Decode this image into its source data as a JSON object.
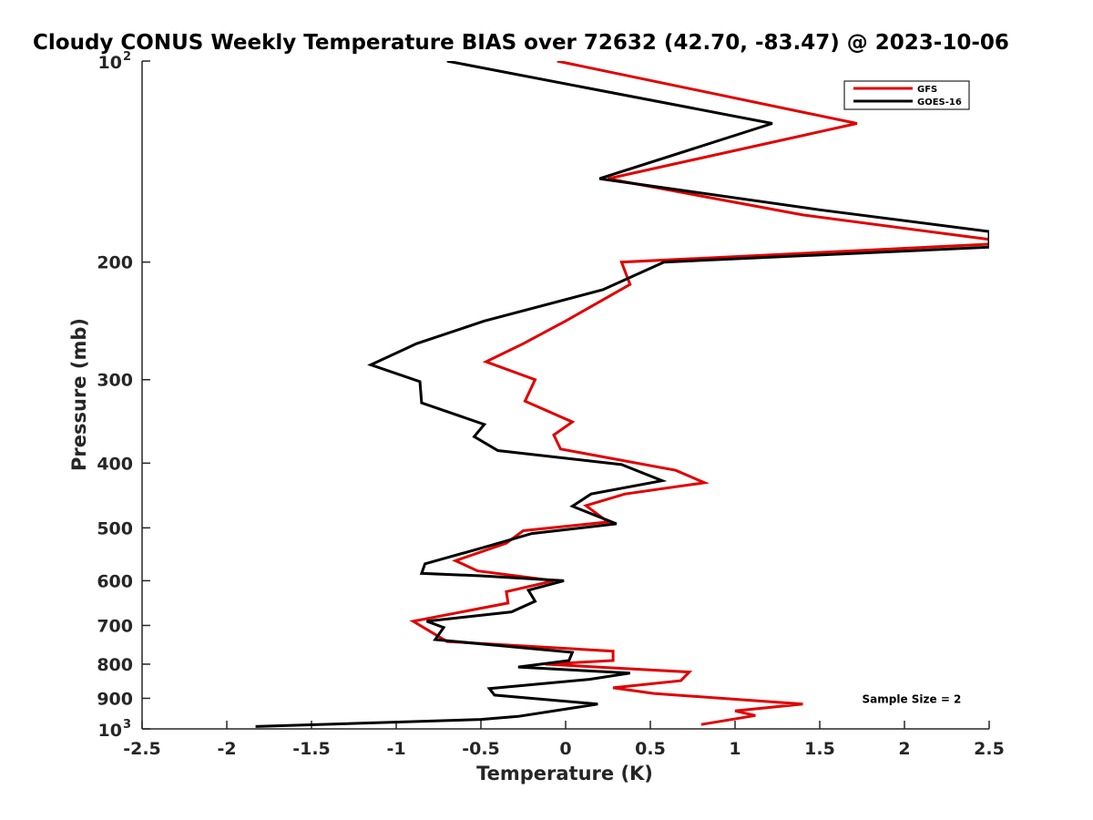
{
  "chart_data": {
    "type": "line",
    "title": "Cloudy CONUS Weekly Temperature BIAS over 72632 (42.70, -83.47) @ 2023-10-06",
    "xlabel": "Temperature (K)",
    "ylabel": "Pressure (mb)",
    "xlim": [
      -2.5,
      2.5
    ],
    "ylim": [
      100,
      1000
    ],
    "y_scale": "log",
    "y_reversed": true,
    "grid": false,
    "legend_position": "top-right",
    "x_ticks": [
      {
        "value": -2.5,
        "label": "-2.5"
      },
      {
        "value": -2,
        "label": "-2"
      },
      {
        "value": -1.5,
        "label": "-1.5"
      },
      {
        "value": -1,
        "label": "-1"
      },
      {
        "value": -0.5,
        "label": "-0.5"
      },
      {
        "value": 0,
        "label": "0"
      },
      {
        "value": 0.5,
        "label": "0.5"
      },
      {
        "value": 1,
        "label": "1"
      },
      {
        "value": 1.5,
        "label": "1.5"
      },
      {
        "value": 2,
        "label": "2"
      },
      {
        "value": 2.5,
        "label": "2.5"
      }
    ],
    "y_ticks": [
      {
        "value": 200,
        "label": "200"
      },
      {
        "value": 300,
        "label": "300"
      },
      {
        "value": 400,
        "label": "400"
      },
      {
        "value": 500,
        "label": "500"
      },
      {
        "value": 600,
        "label": "600"
      },
      {
        "value": 700,
        "label": "700"
      },
      {
        "value": 800,
        "label": "800"
      },
      {
        "value": 900,
        "label": "900"
      }
    ],
    "y_ticks_power": [
      {
        "value": 100,
        "base": "10",
        "exp": "2"
      },
      {
        "value": 1000,
        "base": "10",
        "exp": "3"
      }
    ],
    "series": [
      {
        "name": "GFS",
        "color": "#e00000",
        "points": [
          {
            "x": -0.05,
            "y": 100
          },
          {
            "x": 1.72,
            "y": 124
          },
          {
            "x": 0.25,
            "y": 150
          },
          {
            "x": 1.4,
            "y": 170
          },
          {
            "x": 2.5,
            "y": 185
          },
          {
            "x": 2.5,
            "y": 188
          },
          {
            "x": 0.33,
            "y": 200
          },
          {
            "x": 0.38,
            "y": 216
          },
          {
            "x": 0.0,
            "y": 245
          },
          {
            "x": -0.25,
            "y": 265
          },
          {
            "x": -0.47,
            "y": 282
          },
          {
            "x": -0.18,
            "y": 300
          },
          {
            "x": -0.24,
            "y": 323
          },
          {
            "x": 0.04,
            "y": 347
          },
          {
            "x": -0.07,
            "y": 363
          },
          {
            "x": -0.03,
            "y": 381
          },
          {
            "x": 0.65,
            "y": 410
          },
          {
            "x": 0.82,
            "y": 428
          },
          {
            "x": 0.35,
            "y": 445
          },
          {
            "x": 0.12,
            "y": 463
          },
          {
            "x": 0.25,
            "y": 490
          },
          {
            "x": -0.25,
            "y": 505
          },
          {
            "x": -0.35,
            "y": 527
          },
          {
            "x": -0.65,
            "y": 560
          },
          {
            "x": -0.52,
            "y": 580
          },
          {
            "x": -0.07,
            "y": 600
          },
          {
            "x": -0.35,
            "y": 623
          },
          {
            "x": -0.34,
            "y": 648
          },
          {
            "x": -0.9,
            "y": 690
          },
          {
            "x": -0.7,
            "y": 740
          },
          {
            "x": 0.28,
            "y": 765
          },
          {
            "x": 0.28,
            "y": 790
          },
          {
            "x": -0.12,
            "y": 800
          },
          {
            "x": 0.73,
            "y": 822
          },
          {
            "x": 0.68,
            "y": 847
          },
          {
            "x": 0.28,
            "y": 868
          },
          {
            "x": 0.52,
            "y": 885
          },
          {
            "x": 1.4,
            "y": 918
          },
          {
            "x": 1.0,
            "y": 940
          },
          {
            "x": 1.12,
            "y": 955
          },
          {
            "x": 0.8,
            "y": 985
          }
        ]
      },
      {
        "name": "GOES-16",
        "color": "#000000",
        "points": [
          {
            "x": -0.7,
            "y": 100
          },
          {
            "x": 1.22,
            "y": 124
          },
          {
            "x": 0.2,
            "y": 150
          },
          {
            "x": 1.5,
            "y": 167
          },
          {
            "x": 2.5,
            "y": 180
          },
          {
            "x": 2.5,
            "y": 190
          },
          {
            "x": 0.58,
            "y": 200
          },
          {
            "x": 0.22,
            "y": 220
          },
          {
            "x": -0.48,
            "y": 245
          },
          {
            "x": -0.88,
            "y": 265
          },
          {
            "x": -1.15,
            "y": 285
          },
          {
            "x": -0.86,
            "y": 302
          },
          {
            "x": -0.85,
            "y": 325
          },
          {
            "x": -0.48,
            "y": 350
          },
          {
            "x": -0.54,
            "y": 365
          },
          {
            "x": -0.4,
            "y": 383
          },
          {
            "x": 0.33,
            "y": 402
          },
          {
            "x": 0.57,
            "y": 425
          },
          {
            "x": 0.15,
            "y": 445
          },
          {
            "x": 0.04,
            "y": 464
          },
          {
            "x": 0.3,
            "y": 493
          },
          {
            "x": -0.2,
            "y": 510
          },
          {
            "x": -0.45,
            "y": 532
          },
          {
            "x": -0.83,
            "y": 566
          },
          {
            "x": -0.85,
            "y": 585
          },
          {
            "x": -0.5,
            "y": 590
          },
          {
            "x": -0.01,
            "y": 600
          },
          {
            "x": -0.22,
            "y": 620
          },
          {
            "x": -0.18,
            "y": 644
          },
          {
            "x": -0.32,
            "y": 668
          },
          {
            "x": -0.82,
            "y": 690
          },
          {
            "x": -0.72,
            "y": 705
          },
          {
            "x": -0.77,
            "y": 735
          },
          {
            "x": 0.04,
            "y": 768
          },
          {
            "x": 0.02,
            "y": 790
          },
          {
            "x": -0.28,
            "y": 808
          },
          {
            "x": 0.38,
            "y": 825
          },
          {
            "x": 0.14,
            "y": 843
          },
          {
            "x": -0.45,
            "y": 870
          },
          {
            "x": -0.42,
            "y": 890
          },
          {
            "x": 0.19,
            "y": 918
          },
          {
            "x": -0.28,
            "y": 958
          },
          {
            "x": -0.5,
            "y": 968
          },
          {
            "x": -1.83,
            "y": 992
          }
        ]
      }
    ],
    "annotations": [
      {
        "text": "Sample Size = 2",
        "x": 1.75,
        "y": 900
      }
    ]
  }
}
